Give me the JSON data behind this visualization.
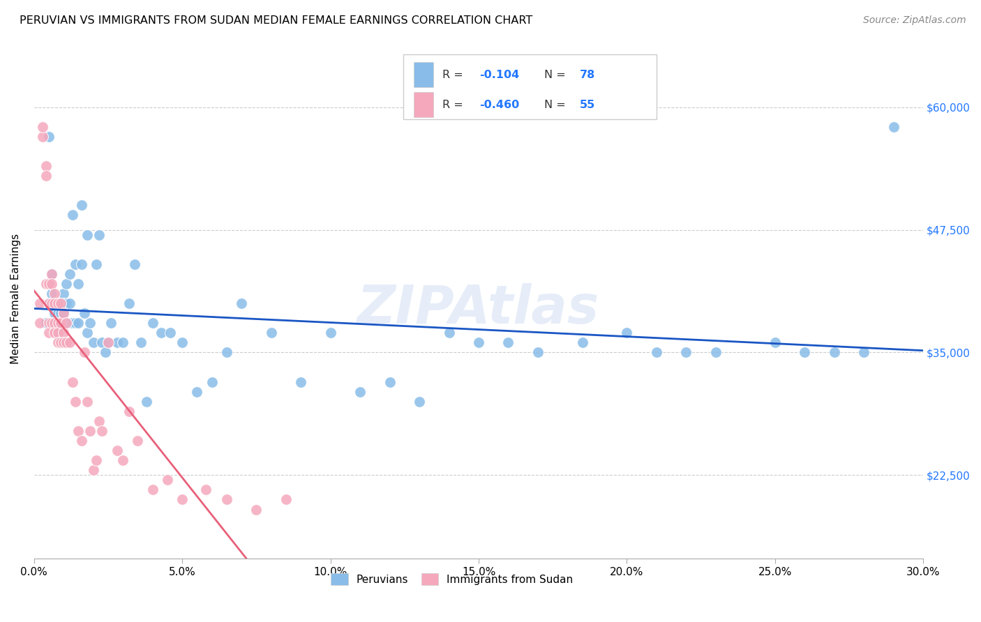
{
  "title": "PERUVIAN VS IMMIGRANTS FROM SUDAN MEDIAN FEMALE EARNINGS CORRELATION CHART",
  "source": "Source: ZipAtlas.com",
  "ylabel": "Median Female Earnings",
  "xlim": [
    0.0,
    0.3
  ],
  "ylim": [
    14000,
    67000
  ],
  "ytick_labels": [
    "$22,500",
    "$35,000",
    "$47,500",
    "$60,000"
  ],
  "ytick_values": [
    22500,
    35000,
    47500,
    60000
  ],
  "xtick_labels": [
    "0.0%",
    "5.0%",
    "10.0%",
    "15.0%",
    "20.0%",
    "25.0%",
    "30.0%"
  ],
  "xtick_values": [
    0.0,
    0.05,
    0.1,
    0.15,
    0.2,
    0.25,
    0.3
  ],
  "blue_color": "#89BCE8",
  "pink_color": "#F5A8BC",
  "blue_line_color": "#1A56C4",
  "pink_line_color": "#E8607A",
  "legend_R_blue": "-0.104",
  "legend_N_blue": "78",
  "legend_R_pink": "-0.460",
  "legend_N_pink": "55",
  "legend_label_blue": "Peruvians",
  "legend_label_pink": "Immigrants from Sudan",
  "watermark": "ZIPAtlas",
  "blue_scatter_x": [
    0.004,
    0.005,
    0.005,
    0.006,
    0.006,
    0.006,
    0.007,
    0.007,
    0.007,
    0.008,
    0.008,
    0.008,
    0.009,
    0.009,
    0.009,
    0.01,
    0.01,
    0.01,
    0.01,
    0.011,
    0.011,
    0.011,
    0.012,
    0.012,
    0.012,
    0.013,
    0.013,
    0.014,
    0.014,
    0.015,
    0.015,
    0.016,
    0.016,
    0.017,
    0.018,
    0.018,
    0.019,
    0.02,
    0.021,
    0.022,
    0.023,
    0.024,
    0.025,
    0.026,
    0.028,
    0.03,
    0.032,
    0.034,
    0.036,
    0.038,
    0.04,
    0.043,
    0.046,
    0.05,
    0.055,
    0.06,
    0.065,
    0.07,
    0.08,
    0.09,
    0.1,
    0.11,
    0.12,
    0.13,
    0.14,
    0.15,
    0.16,
    0.17,
    0.185,
    0.2,
    0.21,
    0.22,
    0.23,
    0.25,
    0.26,
    0.27,
    0.28,
    0.29
  ],
  "blue_scatter_y": [
    38000,
    57000,
    40000,
    38000,
    41000,
    43000,
    40000,
    39000,
    38000,
    40000,
    39000,
    37000,
    40000,
    39000,
    38000,
    41000,
    40000,
    39000,
    38000,
    42000,
    40000,
    38000,
    43000,
    40000,
    38000,
    49000,
    38000,
    44000,
    38000,
    42000,
    38000,
    50000,
    44000,
    39000,
    47000,
    37000,
    38000,
    36000,
    44000,
    47000,
    36000,
    35000,
    36000,
    38000,
    36000,
    36000,
    40000,
    44000,
    36000,
    30000,
    38000,
    37000,
    37000,
    36000,
    31000,
    32000,
    35000,
    40000,
    37000,
    32000,
    37000,
    31000,
    32000,
    30000,
    37000,
    36000,
    36000,
    35000,
    36000,
    37000,
    35000,
    35000,
    35000,
    36000,
    35000,
    35000,
    35000,
    58000
  ],
  "pink_scatter_x": [
    0.002,
    0.002,
    0.003,
    0.003,
    0.004,
    0.004,
    0.004,
    0.005,
    0.005,
    0.005,
    0.005,
    0.006,
    0.006,
    0.006,
    0.006,
    0.007,
    0.007,
    0.007,
    0.007,
    0.008,
    0.008,
    0.008,
    0.008,
    0.009,
    0.009,
    0.009,
    0.01,
    0.01,
    0.01,
    0.011,
    0.011,
    0.012,
    0.013,
    0.014,
    0.015,
    0.016,
    0.017,
    0.018,
    0.019,
    0.02,
    0.021,
    0.022,
    0.023,
    0.025,
    0.028,
    0.03,
    0.032,
    0.035,
    0.04,
    0.045,
    0.05,
    0.058,
    0.065,
    0.075,
    0.085
  ],
  "pink_scatter_y": [
    38000,
    40000,
    57000,
    58000,
    54000,
    53000,
    42000,
    42000,
    40000,
    38000,
    37000,
    43000,
    42000,
    40000,
    38000,
    41000,
    40000,
    38000,
    37000,
    40000,
    38000,
    37000,
    36000,
    40000,
    38000,
    36000,
    39000,
    37000,
    36000,
    38000,
    36000,
    36000,
    32000,
    30000,
    27000,
    26000,
    35000,
    30000,
    27000,
    23000,
    24000,
    28000,
    27000,
    36000,
    25000,
    24000,
    29000,
    26000,
    21000,
    22000,
    20000,
    21000,
    20000,
    19000,
    20000
  ]
}
